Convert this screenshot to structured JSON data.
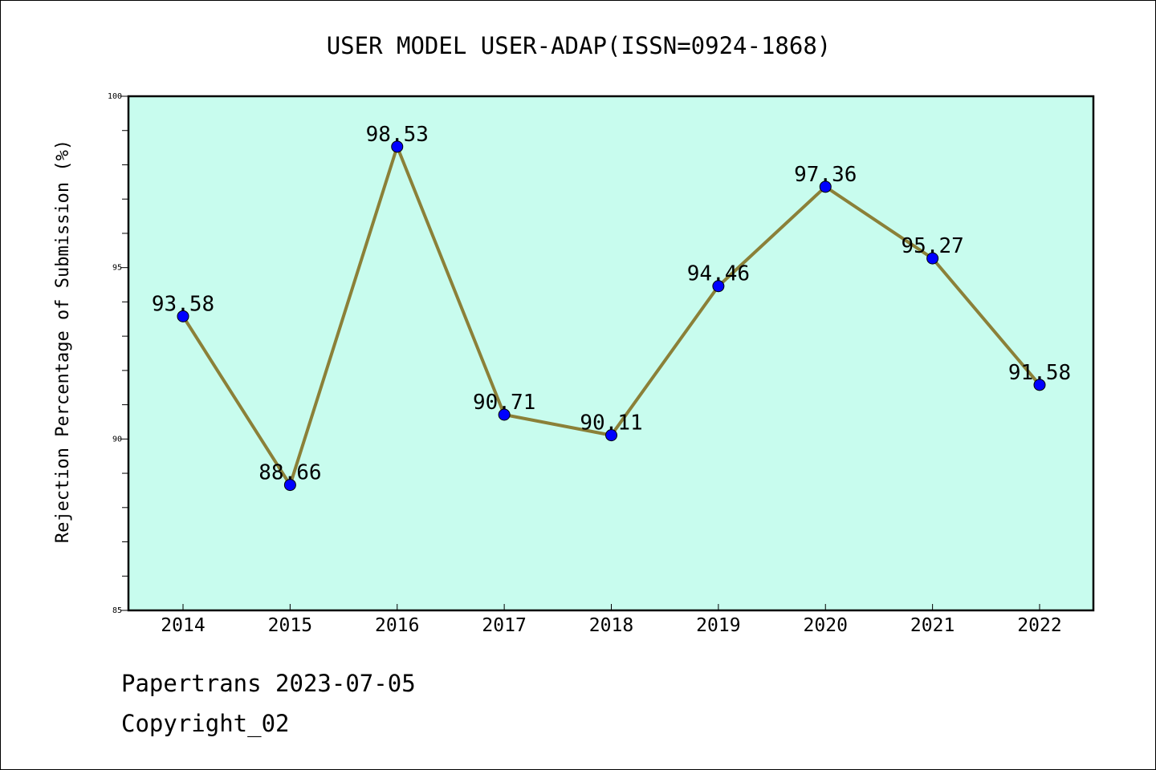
{
  "chart_data": {
    "type": "line",
    "title": "USER MODEL USER-ADAP(ISSN=0924-1868)",
    "xlabel": "",
    "ylabel": "Rejection Percentage of Submission (%)",
    "categories": [
      "2014",
      "2015",
      "2016",
      "2017",
      "2018",
      "2019",
      "2020",
      "2021",
      "2022"
    ],
    "series": [
      {
        "name": "Rejection Percentage",
        "values": [
          93.58,
          88.66,
          98.53,
          90.71,
          90.11,
          94.46,
          97.36,
          95.27,
          91.58
        ]
      }
    ],
    "data_labels": [
      "93.58",
      "88.66",
      "98.53",
      "90.71",
      "90.11",
      "94.46",
      "97.36",
      "95.27",
      "91.58"
    ],
    "ylim": [
      85,
      100
    ],
    "yticks": [
      85,
      90,
      95,
      100
    ],
    "ytick_labels": [
      "85",
      "90",
      "95",
      "100"
    ],
    "minor_yticks": [
      86,
      87,
      88,
      89,
      91,
      92,
      93,
      94,
      96,
      97,
      98,
      99
    ],
    "grid": false,
    "colors": {
      "plot_background": "#c8fcee",
      "line": "#8b8038",
      "marker": "#0000ff",
      "axis": "#000000"
    }
  },
  "footer": {
    "source": "Papertrans 2023-07-05",
    "copyright": "Copyright_02"
  }
}
